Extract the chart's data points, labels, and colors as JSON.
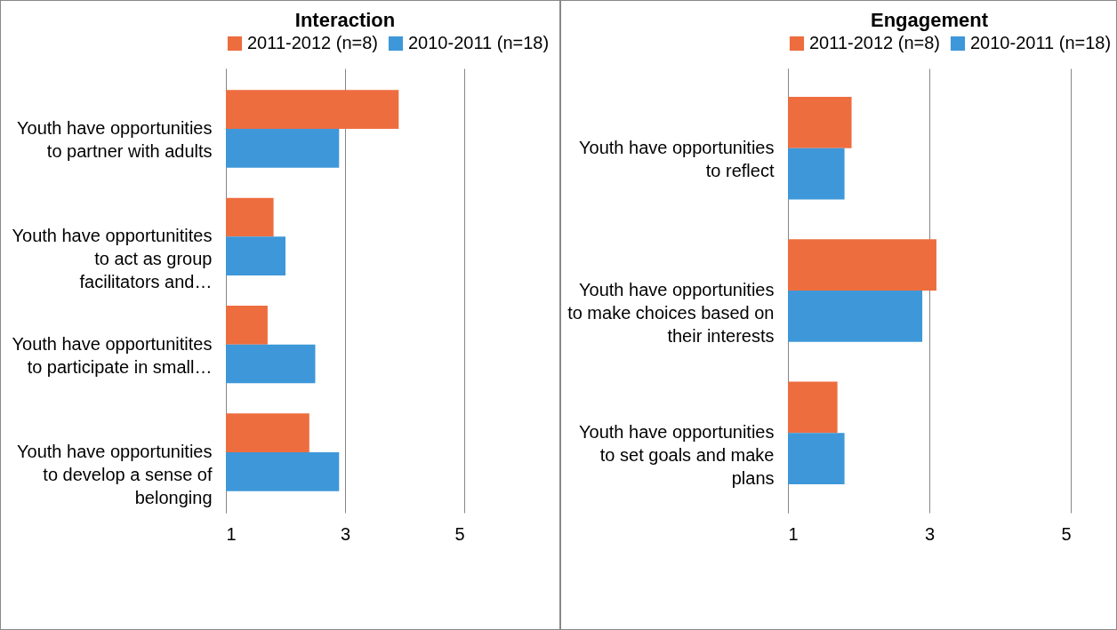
{
  "chart_data": [
    {
      "type": "bar",
      "title": "Interaction",
      "orientation": "horizontal",
      "categories": [
        "Youth have opportunities to partner with adults",
        "Youth have opportunitites to act as group facilitators and…",
        "Youth have opportunitites to participate in small…",
        "Youth have opportunities to develop a sense of belonging"
      ],
      "series": [
        {
          "name": "2011-2012 (n=8)",
          "color": "#ed6d3f",
          "values": [
            3.9,
            1.8,
            1.7,
            2.4
          ]
        },
        {
          "name": "2010-2011 (n=18)",
          "color": "#3e97d8",
          "values": [
            2.9,
            2.0,
            2.5,
            2.9
          ]
        }
      ],
      "xlim": [
        1,
        5
      ],
      "xticks": [
        1,
        3,
        5
      ],
      "grid": "x",
      "legend": "top"
    },
    {
      "type": "bar",
      "title": "Engagement",
      "orientation": "horizontal",
      "categories": [
        "Youth have opportunities to reflect",
        "Youth have opportunities to make choices based on their interests",
        "Youth have opportunities to set goals and make plans"
      ],
      "series": [
        {
          "name": "2011-2012 (n=8)",
          "color": "#ed6d3f",
          "values": [
            1.9,
            3.1,
            1.7
          ]
        },
        {
          "name": "2010-2011 (n=18)",
          "color": "#3e97d8",
          "values": [
            1.8,
            2.9,
            1.8
          ]
        }
      ],
      "xlim": [
        1,
        5
      ],
      "xticks": [
        1,
        3,
        5
      ],
      "grid": "x",
      "legend": "top"
    }
  ]
}
